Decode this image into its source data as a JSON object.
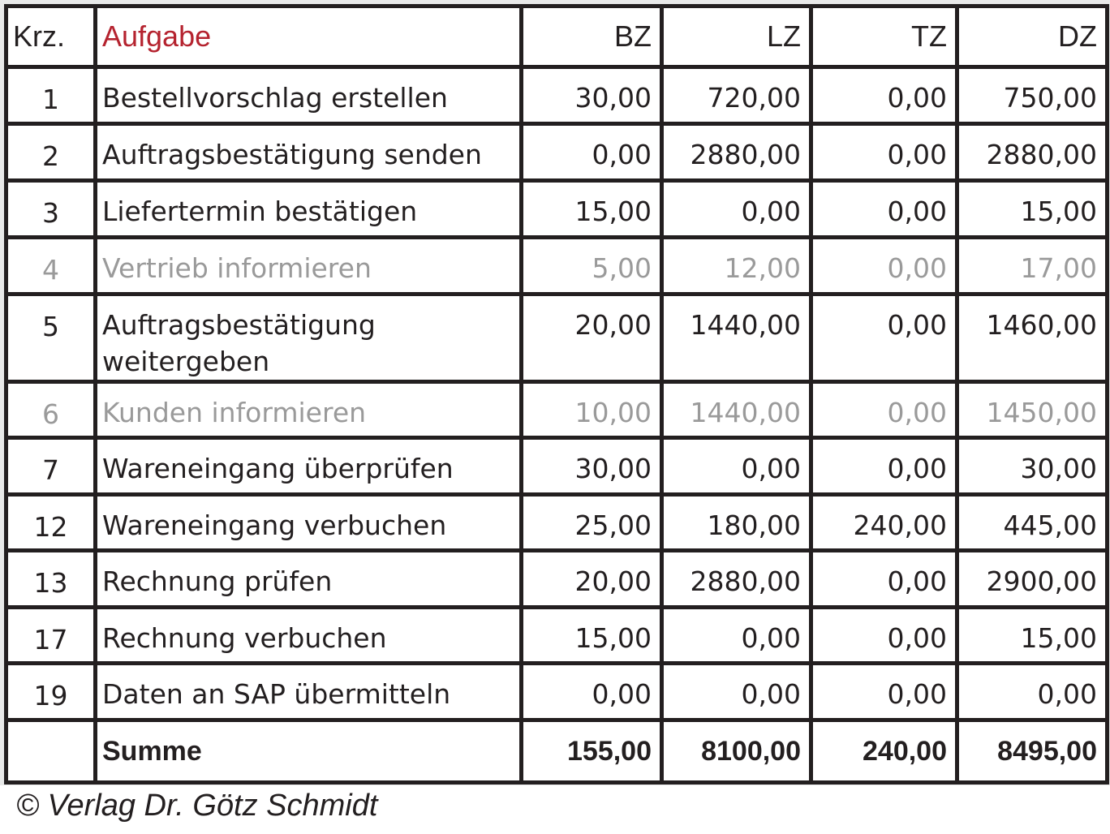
{
  "headers": {
    "krz": "Krz.",
    "aufgabe": "Aufgabe",
    "bz": "BZ",
    "lz": "LZ",
    "tz": "TZ",
    "dz": "DZ"
  },
  "accent_color": "#b5232f",
  "rows": [
    {
      "krz": "1",
      "aufgabe": "Bestellvorschlag erstellen",
      "bz": "30,00",
      "lz": "720,00",
      "tz": "0,00",
      "dz": "750,00",
      "greyed": false
    },
    {
      "krz": "2",
      "aufgabe": "Auftragsbestätigung senden",
      "bz": "0,00",
      "lz": "2880,00",
      "tz": "0,00",
      "dz": "2880,00",
      "greyed": false
    },
    {
      "krz": "3",
      "aufgabe": "Liefertermin bestätigen",
      "bz": "15,00",
      "lz": "0,00",
      "tz": "0,00",
      "dz": "15,00",
      "greyed": false
    },
    {
      "krz": "4",
      "aufgabe": "Vertrieb informieren",
      "bz": "5,00",
      "lz": "12,00",
      "tz": "0,00",
      "dz": "17,00",
      "greyed": true
    },
    {
      "krz": "5",
      "aufgabe": "Auftragsbestätigung weitergeben",
      "bz": "20,00",
      "lz": "1440,00",
      "tz": "0,00",
      "dz": "1460,00",
      "greyed": false
    },
    {
      "krz": "6",
      "aufgabe": "Kunden informieren",
      "bz": "10,00",
      "lz": "1440,00",
      "tz": "0,00",
      "dz": "1450,00",
      "greyed": true
    },
    {
      "krz": "7",
      "aufgabe": "Wareneingang überprüfen",
      "bz": "30,00",
      "lz": "0,00",
      "tz": "0,00",
      "dz": "30,00",
      "greyed": false
    },
    {
      "krz": "12",
      "aufgabe": "Wareneingang verbuchen",
      "bz": "25,00",
      "lz": "180,00",
      "tz": "240,00",
      "dz": "445,00",
      "greyed": false
    },
    {
      "krz": "13",
      "aufgabe": "Rechnung prüfen",
      "bz": "20,00",
      "lz": "2880,00",
      "tz": "0,00",
      "dz": "2900,00",
      "greyed": false
    },
    {
      "krz": "17",
      "aufgabe": "Rechnung verbuchen",
      "bz": "15,00",
      "lz": "0,00",
      "tz": "0,00",
      "dz": "15,00",
      "greyed": false
    },
    {
      "krz": "19",
      "aufgabe": "Daten an SAP übermitteln",
      "bz": "0,00",
      "lz": "0,00",
      "tz": "0,00",
      "dz": "0,00",
      "greyed": false
    }
  ],
  "sum": {
    "label": "Summe",
    "bz": "155,00",
    "lz": "8100,00",
    "tz": "240,00",
    "dz": "8495,00"
  },
  "footer": "© Verlag Dr. Götz Schmidt"
}
